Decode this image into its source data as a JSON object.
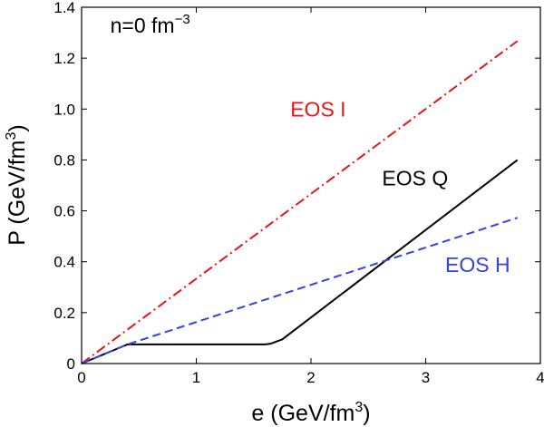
{
  "chart_data": {
    "type": "line",
    "xlabel": "e (GeV/fm",
    "xlabel_sup": "3",
    "xlabel_end": ")",
    "ylabel": "P (GeV/fm",
    "ylabel_sup": "3",
    "ylabel_end": ")",
    "xlim": [
      0,
      4
    ],
    "ylim": [
      0,
      1.4
    ],
    "xticks": [
      0,
      1,
      2,
      3,
      4
    ],
    "xtick_labels": [
      "0",
      "1",
      "2",
      "3",
      "4"
    ],
    "yticks": [
      0,
      0.2,
      0.4,
      0.6,
      0.8,
      1.0,
      1.2,
      1.4
    ],
    "ytick_labels": [
      "0",
      "0.2",
      "0.4",
      "0.6",
      "0.8",
      "1.0",
      "1.2",
      "1.4"
    ],
    "grid": false,
    "annotations": {
      "density": {
        "text": "n=0 fm",
        "sup": "−3",
        "x": 0.25,
        "y": 1.3
      },
      "eos_i": {
        "text": "EOS I",
        "x": 1.82,
        "y": 0.97,
        "color": "#e8131c"
      },
      "eos_q": {
        "text": "EOS Q",
        "x": 2.62,
        "y": 0.7,
        "color": "#000000"
      },
      "eos_h": {
        "text": "EOS H",
        "x": 3.17,
        "y": 0.36,
        "color": "#3344e0"
      }
    },
    "series": [
      {
        "name": "EOS I",
        "style": "dash-dot",
        "color": "#e8131c",
        "x": [
          0,
          3.8
        ],
        "y": [
          0,
          1.267
        ]
      },
      {
        "name": "EOS Q",
        "style": "solid",
        "color": "#000000",
        "x": [
          0,
          0.4,
          1.6,
          1.65,
          1.75,
          3.8
        ],
        "y": [
          0,
          0.075,
          0.075,
          0.078,
          0.095,
          0.8
        ]
      },
      {
        "name": "EOS H",
        "style": "dashed",
        "color": "#3344e0",
        "x": [
          0,
          0.4,
          3.8
        ],
        "y": [
          0,
          0.075,
          0.573
        ]
      }
    ]
  }
}
